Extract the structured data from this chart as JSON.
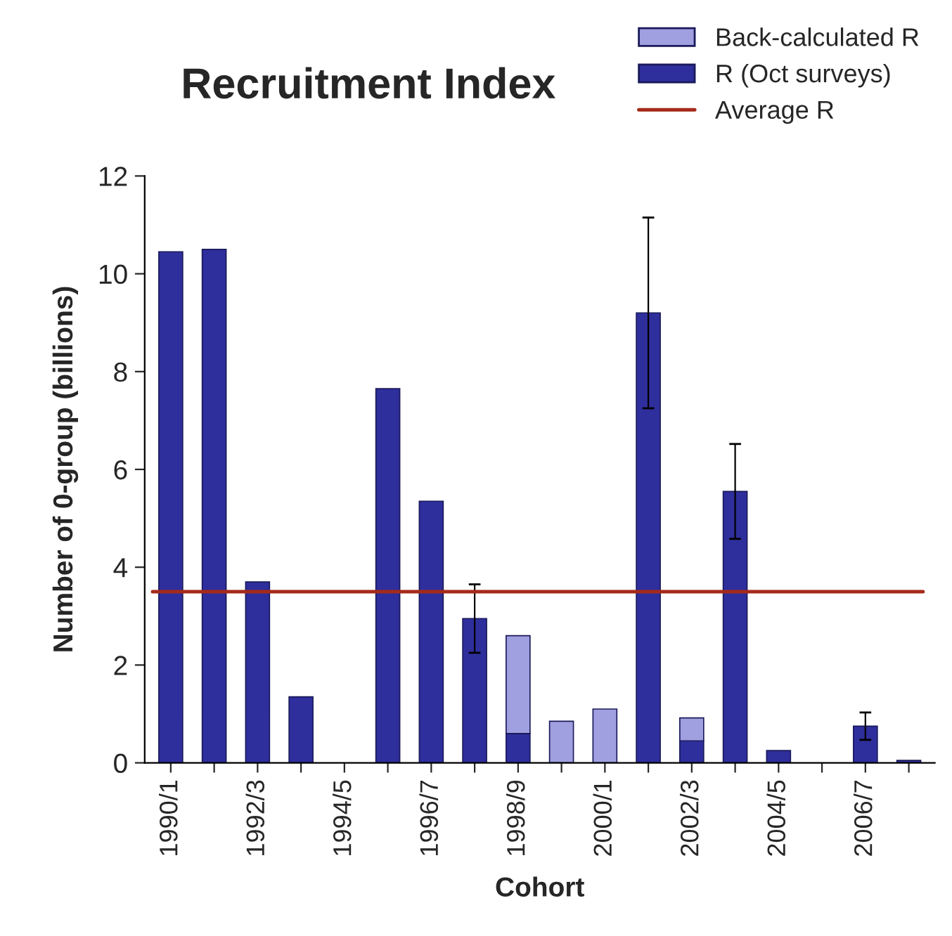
{
  "chart_data": {
    "type": "bar",
    "title": "Recruitment Index",
    "xlabel": "Cohort",
    "ylabel": "Number of 0-group (billions)",
    "categories": [
      "1990/1",
      null,
      "1992/3",
      null,
      "1994/5",
      null,
      "1996/7",
      null,
      "1998/9",
      null,
      "2000/1",
      null,
      "2002/3",
      null,
      "2004/5",
      null,
      "2006/7",
      null
    ],
    "stacked": true,
    "series": [
      {
        "name": "R (Oct surveys)",
        "color": "#2e2e9c",
        "values": [
          10.45,
          10.5,
          3.7,
          1.35,
          null,
          7.65,
          5.35,
          2.95,
          0.6,
          null,
          null,
          9.2,
          0.45,
          5.55,
          0.25,
          null,
          0.75,
          0.05
        ],
        "errors": [
          null,
          null,
          null,
          null,
          null,
          null,
          null,
          0.7,
          null,
          null,
          null,
          1.95,
          null,
          0.97,
          null,
          null,
          0.28,
          null
        ]
      },
      {
        "name": "Back-calculated R",
        "color": "#a0a0e0",
        "values": [
          null,
          null,
          null,
          null,
          null,
          null,
          null,
          null,
          2.0,
          0.85,
          1.1,
          null,
          0.47,
          null,
          null,
          null,
          null,
          null
        ]
      }
    ],
    "ref_lines": [
      {
        "axis": "y",
        "value": 3.5,
        "label": "Average R",
        "color": "#a52a1a"
      }
    ],
    "ylim": [
      0,
      12
    ],
    "yticks": [
      0,
      2,
      4,
      6,
      8,
      10,
      12
    ],
    "grid": false,
    "legend": "top right"
  }
}
